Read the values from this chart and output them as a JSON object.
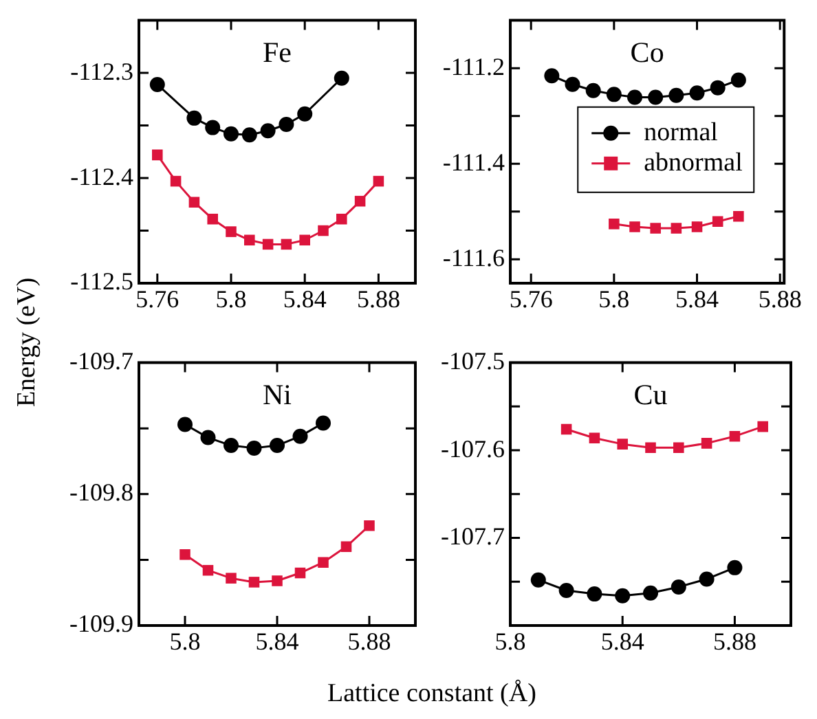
{
  "chart_data": [
    {
      "type": "line",
      "title": "Fe",
      "ylabel": "Energy (eV)",
      "xlim": [
        5.75,
        5.9
      ],
      "xticks": [
        5.76,
        5.8,
        5.84,
        5.88
      ],
      "ylim": [
        -112.5,
        -112.25
      ],
      "yticks": [
        -112.5,
        {
          "value": -112.45,
          "label": null
        },
        -112.4,
        {
          "value": -112.35,
          "label": null
        },
        -112.3
      ],
      "grid": false,
      "legend": false,
      "series": [
        {
          "color": "#000000",
          "marker": "circle",
          "x": [
            5.76,
            5.78,
            5.79,
            5.8,
            5.81,
            5.82,
            5.83,
            5.84,
            5.86
          ],
          "values": [
            -112.311,
            -112.343,
            -112.352,
            -112.358,
            -112.359,
            -112.355,
            -112.349,
            -112.339,
            -112.305
          ]
        },
        {
          "color": "#dc143c",
          "marker": "square",
          "x": [
            5.76,
            5.77,
            5.78,
            5.79,
            5.8,
            5.81,
            5.82,
            5.83,
            5.84,
            5.85,
            5.86,
            5.87,
            5.88
          ],
          "values": [
            -112.378,
            -112.403,
            -112.423,
            -112.439,
            -112.451,
            -112.459,
            -112.463,
            -112.463,
            -112.459,
            -112.45,
            -112.439,
            -112.422,
            -112.403
          ]
        }
      ]
    },
    {
      "type": "line",
      "title": "Co",
      "xlim": [
        5.75,
        5.882
      ],
      "xticks": [
        5.76,
        5.8,
        5.84,
        5.88
      ],
      "ylim": [
        -111.65,
        -111.1
      ],
      "yticks": [
        -111.6,
        {
          "value": -111.5,
          "label": null
        },
        -111.4,
        {
          "value": -111.3,
          "label": null
        },
        -111.2
      ],
      "grid": false,
      "legend": "right",
      "series": [
        {
          "name": "normal",
          "color": "#000000",
          "marker": "circle",
          "x": [
            5.77,
            5.78,
            5.79,
            5.8,
            5.81,
            5.82,
            5.83,
            5.84,
            5.85,
            5.86
          ],
          "values": [
            -111.216,
            -111.234,
            -111.247,
            -111.255,
            -111.261,
            -111.261,
            -111.257,
            -111.252,
            -111.241,
            -111.225
          ]
        },
        {
          "name": "abnormal",
          "color": "#dc143c",
          "marker": "square",
          "x": [
            5.8,
            5.81,
            5.82,
            5.83,
            5.84,
            5.85,
            5.86
          ],
          "values": [
            -111.526,
            -111.532,
            -111.535,
            -111.535,
            -111.532,
            -111.521,
            -111.51
          ]
        }
      ]
    },
    {
      "type": "line",
      "title": "Ni",
      "xlabel": "Lattice constant (Å)",
      "xlim": [
        5.78,
        5.9
      ],
      "xticks": [
        5.8,
        5.84,
        5.88
      ],
      "ylim": [
        -109.9,
        -109.7
      ],
      "yticks": [
        -109.9,
        {
          "value": -109.85,
          "label": null
        },
        -109.8,
        {
          "value": -109.75,
          "label": null
        },
        -109.7
      ],
      "grid": false,
      "legend": false,
      "series": [
        {
          "color": "#000000",
          "marker": "circle",
          "x": [
            5.8,
            5.81,
            5.82,
            5.83,
            5.84,
            5.85,
            5.86
          ],
          "values": [
            -109.747,
            -109.757,
            -109.763,
            -109.765,
            -109.763,
            -109.756,
            -109.746
          ]
        },
        {
          "color": "#dc143c",
          "marker": "square",
          "x": [
            5.8,
            5.81,
            5.82,
            5.83,
            5.84,
            5.85,
            5.86,
            5.87,
            5.88
          ],
          "values": [
            -109.846,
            -109.858,
            -109.864,
            -109.867,
            -109.866,
            -109.86,
            -109.852,
            -109.84,
            -109.824
          ]
        }
      ]
    },
    {
      "type": "line",
      "title": "Cu",
      "xlim": [
        5.8,
        5.9
      ],
      "xticks": [
        5.8,
        5.84,
        5.88
      ],
      "ylim": [
        -107.8,
        -107.5
      ],
      "yticks": [
        {
          "value": -107.75,
          "label": null
        },
        -107.7,
        {
          "value": -107.65,
          "label": null
        },
        -107.6,
        {
          "value": -107.55,
          "label": null
        },
        -107.5
      ],
      "grid": false,
      "legend": false,
      "series": [
        {
          "color": "#000000",
          "marker": "circle",
          "x": [
            5.81,
            5.82,
            5.83,
            5.84,
            5.85,
            5.86,
            5.87,
            5.88
          ],
          "values": [
            -107.748,
            -107.76,
            -107.764,
            -107.766,
            -107.763,
            -107.756,
            -107.747,
            -107.734
          ]
        },
        {
          "color": "#dc143c",
          "marker": "square",
          "x": [
            5.82,
            5.83,
            5.84,
            5.85,
            5.86,
            5.87,
            5.88,
            5.89
          ],
          "values": [
            -107.576,
            -107.586,
            -107.593,
            -107.597,
            -107.597,
            -107.592,
            -107.584,
            -107.573
          ]
        }
      ]
    }
  ]
}
